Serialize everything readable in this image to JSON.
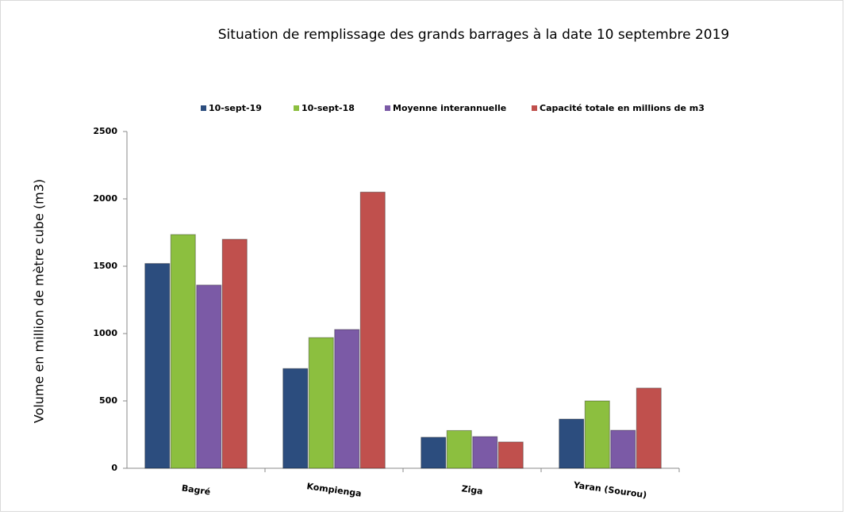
{
  "chart_data": {
    "type": "bar",
    "title": "Situation de remplissage des grands barrages à la date  10 septembre 2019",
    "y_label": "Volume en million de mètre cube (m3)",
    "categories": [
      "Bagré",
      "Kompienga",
      "Ziga",
      "Yaran (Sourou)"
    ],
    "series": [
      {
        "name": "10-sept-19",
        "color": "#2c4d7e",
        "values": [
          1520,
          740,
          230,
          365
        ]
      },
      {
        "name": "10-sept-18",
        "color": "#8cbf3f",
        "values": [
          1735,
          970,
          280,
          500
        ]
      },
      {
        "name": "Moyenne interannuelle",
        "color": "#7b5aa6",
        "values": [
          1360,
          1030,
          235,
          282
        ]
      },
      {
        "name": "Capacité totale en millions de m3",
        "color": "#c0504d",
        "values": [
          1700,
          2050,
          195,
          595
        ]
      }
    ],
    "ylim": [
      0,
      2500
    ],
    "yticks": [
      0,
      500,
      1000,
      1500,
      2000,
      2500
    ],
    "grid": false,
    "legend": "top"
  }
}
